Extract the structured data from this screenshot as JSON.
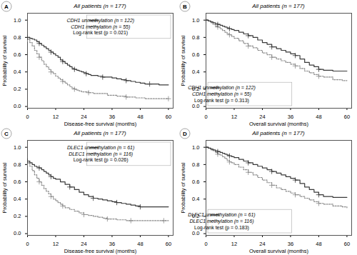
{
  "chart_data": [
    {
      "type": "step",
      "panel_label": "A",
      "title": "All patients (n = 177)",
      "xlabel": "Disease-free survival (months)",
      "ylabel": "Probability of survival",
      "annotations": [
        "Log-rank test (p = 0.021)"
      ],
      "xlim": [
        0,
        62
      ],
      "ylim": [
        -0.02,
        1.08
      ],
      "xticks": [
        0,
        12,
        24,
        36,
        48,
        60
      ],
      "yticks": [
        {
          "value": 0.0,
          "label": "0.0"
        },
        0.2,
        0.4,
        0.6,
        0.8,
        {
          "value": 1.0,
          "label": "1.0"
        }
      ],
      "grid": false,
      "legend": "upper right",
      "series": [
        {
          "name": "CDH1 unmethylation (n = 122)",
          "color": "#3a3a3a",
          "line_style": "solid",
          "marker": "+",
          "x": [
            0,
            1,
            2,
            3,
            4,
            5,
            6,
            7,
            8,
            9,
            10,
            11,
            12,
            13,
            14,
            15,
            16,
            17,
            18,
            19,
            20,
            21,
            22,
            23,
            24,
            25,
            26,
            27,
            28,
            30,
            32,
            34,
            36,
            38,
            40,
            42,
            44,
            46,
            48,
            50,
            52,
            54,
            56,
            58,
            60
          ],
          "values": [
            0.8,
            0.79,
            0.78,
            0.77,
            0.75,
            0.73,
            0.71,
            0.69,
            0.67,
            0.65,
            0.63,
            0.61,
            0.59,
            0.57,
            0.54,
            0.52,
            0.5,
            0.48,
            0.46,
            0.44,
            0.43,
            0.42,
            0.41,
            0.4,
            0.39,
            0.38,
            0.37,
            0.36,
            0.36,
            0.35,
            0.34,
            0.34,
            0.33,
            0.32,
            0.31,
            0.3,
            0.29,
            0.28,
            0.27,
            0.26,
            0.26,
            0.26,
            0.25,
            0.25,
            0.25
          ]
        },
        {
          "name": "CDH1 methylation (n = 55)",
          "color": "#8a8a8a",
          "line_style": "dotted",
          "marker": "+",
          "x": [
            0,
            1,
            2,
            3,
            4,
            5,
            6,
            7,
            8,
            9,
            10,
            11,
            12,
            13,
            14,
            15,
            16,
            17,
            18,
            19,
            20,
            21,
            22,
            23,
            24,
            26,
            28,
            30,
            34,
            38,
            42,
            46,
            50,
            54,
            58,
            60
          ],
          "values": [
            0.78,
            0.74,
            0.7,
            0.65,
            0.61,
            0.57,
            0.53,
            0.49,
            0.46,
            0.43,
            0.4,
            0.38,
            0.35,
            0.33,
            0.31,
            0.29,
            0.27,
            0.25,
            0.23,
            0.21,
            0.2,
            0.19,
            0.18,
            0.17,
            0.17,
            0.16,
            0.15,
            0.15,
            0.13,
            0.12,
            0.11,
            0.1,
            0.09,
            0.09,
            0.09,
            0.09
          ]
        }
      ]
    },
    {
      "type": "step",
      "panel_label": "B",
      "title": "All patients (n = 177)",
      "xlabel": "Overall survival (months)",
      "ylabel": "Probability of survival",
      "annotations": [
        "Log-rank test (p = 0.313)"
      ],
      "xlim": [
        0,
        62
      ],
      "ylim": [
        -0.02,
        1.08
      ],
      "xticks": [
        0,
        12,
        24,
        36,
        48,
        60
      ],
      "yticks": [
        {
          "value": 0.0,
          "label": "0.0"
        },
        0.2,
        0.4,
        0.6,
        0.8,
        {
          "value": 1.0,
          "label": "1.0"
        }
      ],
      "grid": false,
      "legend": "lower left",
      "series": [
        {
          "name": "CDH1 unmethylation (n = 122)",
          "color": "#3a3a3a",
          "line_style": "solid",
          "marker": "+",
          "x": [
            0,
            1,
            2,
            3,
            4,
            5,
            6,
            7,
            8,
            9,
            10,
            11,
            12,
            14,
            16,
            18,
            20,
            22,
            24,
            26,
            28,
            30,
            32,
            34,
            36,
            38,
            40,
            42,
            44,
            46,
            48,
            50,
            54,
            58,
            60
          ],
          "values": [
            1.0,
            0.99,
            0.98,
            0.97,
            0.96,
            0.95,
            0.94,
            0.93,
            0.92,
            0.91,
            0.9,
            0.89,
            0.88,
            0.86,
            0.84,
            0.82,
            0.8,
            0.77,
            0.74,
            0.72,
            0.69,
            0.67,
            0.65,
            0.63,
            0.61,
            0.59,
            0.55,
            0.51,
            0.48,
            0.46,
            0.43,
            0.42,
            0.41,
            0.41,
            0.41
          ]
        },
        {
          "name": "CDH1 methylation (n = 55)",
          "color": "#8a8a8a",
          "line_style": "dotted",
          "marker": "+",
          "x": [
            0,
            1,
            2,
            3,
            4,
            5,
            6,
            7,
            8,
            9,
            10,
            11,
            12,
            14,
            16,
            18,
            20,
            22,
            24,
            26,
            28,
            30,
            32,
            34,
            36,
            38,
            40,
            42,
            44,
            46,
            48,
            50,
            54,
            58,
            60
          ],
          "values": [
            1.0,
            0.99,
            0.97,
            0.95,
            0.93,
            0.92,
            0.9,
            0.88,
            0.86,
            0.84,
            0.83,
            0.81,
            0.79,
            0.76,
            0.73,
            0.7,
            0.68,
            0.65,
            0.62,
            0.6,
            0.57,
            0.55,
            0.53,
            0.51,
            0.49,
            0.47,
            0.44,
            0.41,
            0.39,
            0.37,
            0.35,
            0.34,
            0.31,
            0.3,
            0.3
          ]
        }
      ]
    },
    {
      "type": "step",
      "panel_label": "C",
      "title": "All patients (n = 177)",
      "xlabel": "Disease-free survival (months)",
      "ylabel": "Probability of survival",
      "annotations": [
        "Log-rank test (p = 0.026)"
      ],
      "xlim": [
        0,
        62
      ],
      "ylim": [
        -0.02,
        1.08
      ],
      "xticks": [
        0,
        12,
        24,
        36,
        48,
        60
      ],
      "yticks": [
        {
          "value": 0.0,
          "label": "0.0"
        },
        0.2,
        0.4,
        0.6,
        0.8,
        {
          "value": 1.0,
          "label": "1.0"
        }
      ],
      "grid": false,
      "legend": "upper right",
      "series": [
        {
          "name": "DLEC1 unmethylation (n = 61)",
          "color": "#3a3a3a",
          "line_style": "solid",
          "marker": "+",
          "x": [
            0,
            1,
            2,
            3,
            4,
            5,
            6,
            7,
            8,
            9,
            10,
            11,
            12,
            14,
            16,
            18,
            20,
            22,
            24,
            26,
            28,
            30,
            32,
            34,
            36,
            38,
            40,
            42,
            44,
            46,
            48,
            50,
            54,
            58,
            60
          ],
          "values": [
            0.84,
            0.82,
            0.8,
            0.78,
            0.77,
            0.76,
            0.74,
            0.72,
            0.7,
            0.68,
            0.66,
            0.64,
            0.63,
            0.6,
            0.57,
            0.54,
            0.51,
            0.48,
            0.45,
            0.43,
            0.41,
            0.4,
            0.39,
            0.38,
            0.37,
            0.36,
            0.35,
            0.34,
            0.33,
            0.32,
            0.31,
            0.31,
            0.31,
            0.31,
            0.31
          ]
        },
        {
          "name": "DLEC1 methylation (n = 116)",
          "color": "#8a8a8a",
          "line_style": "dotted",
          "marker": "+",
          "x": [
            0,
            1,
            2,
            3,
            4,
            5,
            6,
            7,
            8,
            9,
            10,
            11,
            12,
            13,
            14,
            15,
            16,
            18,
            20,
            22,
            24,
            26,
            28,
            30,
            32,
            34,
            36,
            38,
            40,
            42,
            44,
            46,
            48,
            50,
            54,
            58,
            60
          ],
          "values": [
            0.82,
            0.78,
            0.73,
            0.68,
            0.64,
            0.6,
            0.56,
            0.52,
            0.49,
            0.46,
            0.43,
            0.4,
            0.38,
            0.36,
            0.34,
            0.32,
            0.3,
            0.28,
            0.26,
            0.24,
            0.22,
            0.21,
            0.2,
            0.19,
            0.18,
            0.17,
            0.17,
            0.16,
            0.16,
            0.15,
            0.15,
            0.15,
            0.15,
            0.15,
            0.15,
            0.15,
            0.15
          ]
        }
      ]
    },
    {
      "type": "step",
      "panel_label": "D",
      "title": "All patients (n = 177)",
      "xlabel": "Overall survival (months)",
      "ylabel": "Probability of survival",
      "annotations": [
        "Log-rank test (p = 0.183)"
      ],
      "xlim": [
        0,
        62
      ],
      "ylim": [
        -0.02,
        1.08
      ],
      "xticks": [
        0,
        12,
        24,
        36,
        48,
        60
      ],
      "yticks": [
        {
          "value": 0.0,
          "label": "0.0"
        },
        0.2,
        0.4,
        0.6,
        0.8,
        {
          "value": 1.0,
          "label": "1.0"
        }
      ],
      "grid": false,
      "legend": "lower left",
      "series": [
        {
          "name": "DLEC1 unmethylation (n = 61)",
          "color": "#3a3a3a",
          "line_style": "solid",
          "marker": "+",
          "x": [
            0,
            1,
            2,
            3,
            4,
            5,
            6,
            7,
            8,
            9,
            10,
            11,
            12,
            14,
            16,
            18,
            20,
            22,
            24,
            26,
            28,
            30,
            32,
            34,
            36,
            38,
            40,
            42,
            44,
            46,
            48,
            50,
            54,
            58,
            60
          ],
          "values": [
            1.0,
            0.99,
            0.98,
            0.97,
            0.96,
            0.95,
            0.94,
            0.93,
            0.92,
            0.91,
            0.9,
            0.89,
            0.88,
            0.86,
            0.84,
            0.82,
            0.8,
            0.78,
            0.76,
            0.74,
            0.72,
            0.7,
            0.68,
            0.66,
            0.64,
            0.62,
            0.58,
            0.54,
            0.51,
            0.48,
            0.45,
            0.43,
            0.42,
            0.42,
            0.42
          ]
        },
        {
          "name": "DLEC1 methylation (n = 116)",
          "color": "#8a8a8a",
          "line_style": "dotted",
          "marker": "+",
          "x": [
            0,
            1,
            2,
            3,
            4,
            5,
            6,
            7,
            8,
            9,
            10,
            11,
            12,
            14,
            16,
            18,
            20,
            22,
            24,
            26,
            28,
            30,
            32,
            34,
            36,
            38,
            40,
            42,
            44,
            46,
            48,
            50,
            54,
            58,
            60
          ],
          "values": [
            1.0,
            0.99,
            0.97,
            0.96,
            0.94,
            0.92,
            0.91,
            0.89,
            0.87,
            0.85,
            0.83,
            0.82,
            0.8,
            0.77,
            0.74,
            0.71,
            0.68,
            0.65,
            0.62,
            0.59,
            0.56,
            0.53,
            0.51,
            0.49,
            0.47,
            0.45,
            0.43,
            0.41,
            0.39,
            0.37,
            0.35,
            0.34,
            0.32,
            0.31,
            0.3
          ]
        }
      ]
    }
  ]
}
